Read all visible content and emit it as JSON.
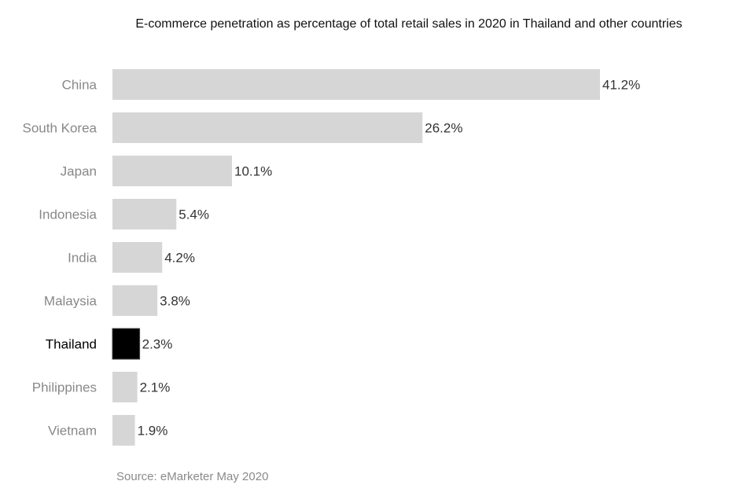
{
  "chart_data": {
    "type": "bar",
    "orientation": "horizontal",
    "title": "E-commerce penetration as percentage of total retail sales in 2020 in Thailand and other countries",
    "categories": [
      "China",
      "South Korea",
      "Japan",
      "Indonesia",
      "India",
      "Malaysia",
      "Thailand",
      "Philippines",
      "Vietnam"
    ],
    "values": [
      41.2,
      26.2,
      10.1,
      5.4,
      4.2,
      3.8,
      2.3,
      2.1,
      1.9
    ],
    "data_labels": [
      "41.2%",
      "26.2%",
      "10.1%",
      "5.4%",
      "4.2%",
      "3.8%",
      "2.3%",
      "2.1%",
      "1.9%"
    ],
    "highlight": "Thailand",
    "xlabel": "",
    "ylabel": "",
    "grid": false,
    "source": "Source: eMarketer May 2020",
    "colors": {
      "bar": "#d6d6d6",
      "highlight": "#000000",
      "label": "#888888",
      "highlight_label": "#000000",
      "value_label": "#333333"
    }
  }
}
